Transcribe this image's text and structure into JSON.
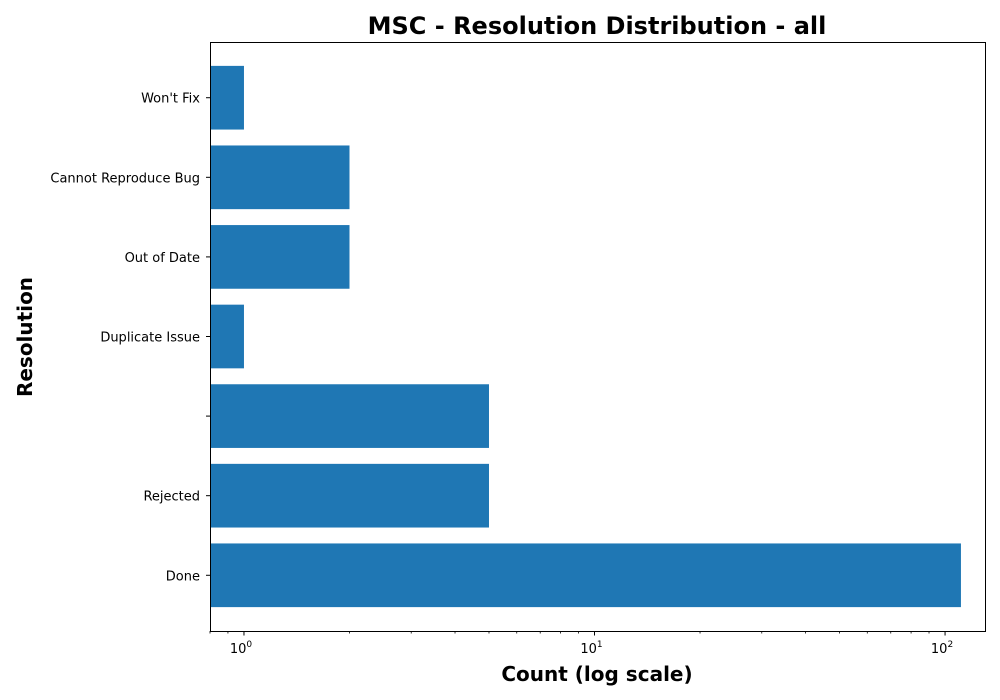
{
  "chart_data": {
    "type": "bar",
    "orientation": "horizontal",
    "title": "MSC - Resolution Distribution - all",
    "xlabel": "Count (log scale)",
    "ylabel": "Resolution",
    "x_scale": "log",
    "xlim": [
      0.8,
      130
    ],
    "x_ticks": [
      {
        "base": "10",
        "exp": "0",
        "value": 1
      },
      {
        "base": "10",
        "exp": "1",
        "value": 10
      },
      {
        "base": "10",
        "exp": "2",
        "value": 100
      }
    ],
    "categories": [
      "Done",
      "Rejected",
      "",
      "Duplicate Issue",
      "Out of Date",
      "Cannot Reproduce Bug",
      "Won't Fix"
    ],
    "values": [
      111,
      5,
      5,
      1,
      2,
      2,
      1
    ],
    "bar_color": "#1f77b4",
    "grid": false
  }
}
